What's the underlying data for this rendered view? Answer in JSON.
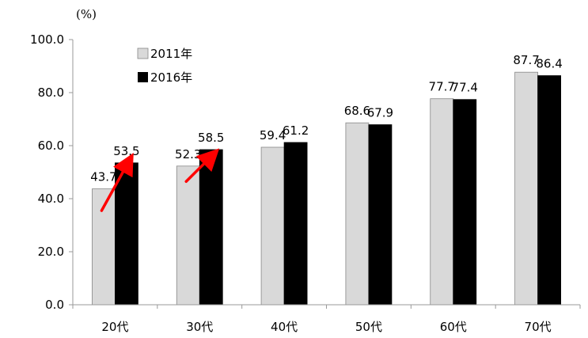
{
  "chart_data": {
    "type": "bar",
    "unit_label": "(%)",
    "categories": [
      "20代",
      "30代",
      "40代",
      "50代",
      "60代",
      "70代"
    ],
    "series": [
      {
        "name": "2011年",
        "values": [
          43.7,
          52.3,
          59.4,
          68.6,
          77.7,
          87.7
        ],
        "color": "#d9d9d9"
      },
      {
        "name": "2016年",
        "values": [
          53.5,
          58.5,
          61.2,
          67.9,
          77.4,
          86.4
        ],
        "color": "#000000"
      }
    ],
    "ylim": [
      0,
      100
    ],
    "yticks": [
      "0.0",
      "20.0",
      "40.0",
      "60.0",
      "80.0",
      "100.0"
    ],
    "ytick_values": [
      0,
      20,
      40,
      60,
      80,
      100
    ],
    "grid": false,
    "legend_position": "top-left",
    "annotations": [
      {
        "type": "arrow",
        "color": "#ff0000",
        "from": {
          "category_index": 0,
          "value": 35.5
        },
        "to": {
          "category_index": 0,
          "value": 55.5
        }
      },
      {
        "type": "arrow",
        "color": "#ff0000",
        "from": {
          "category_index": 1,
          "value": 46.5
        },
        "to": {
          "category_index": 1,
          "value": 57.5
        }
      }
    ]
  }
}
